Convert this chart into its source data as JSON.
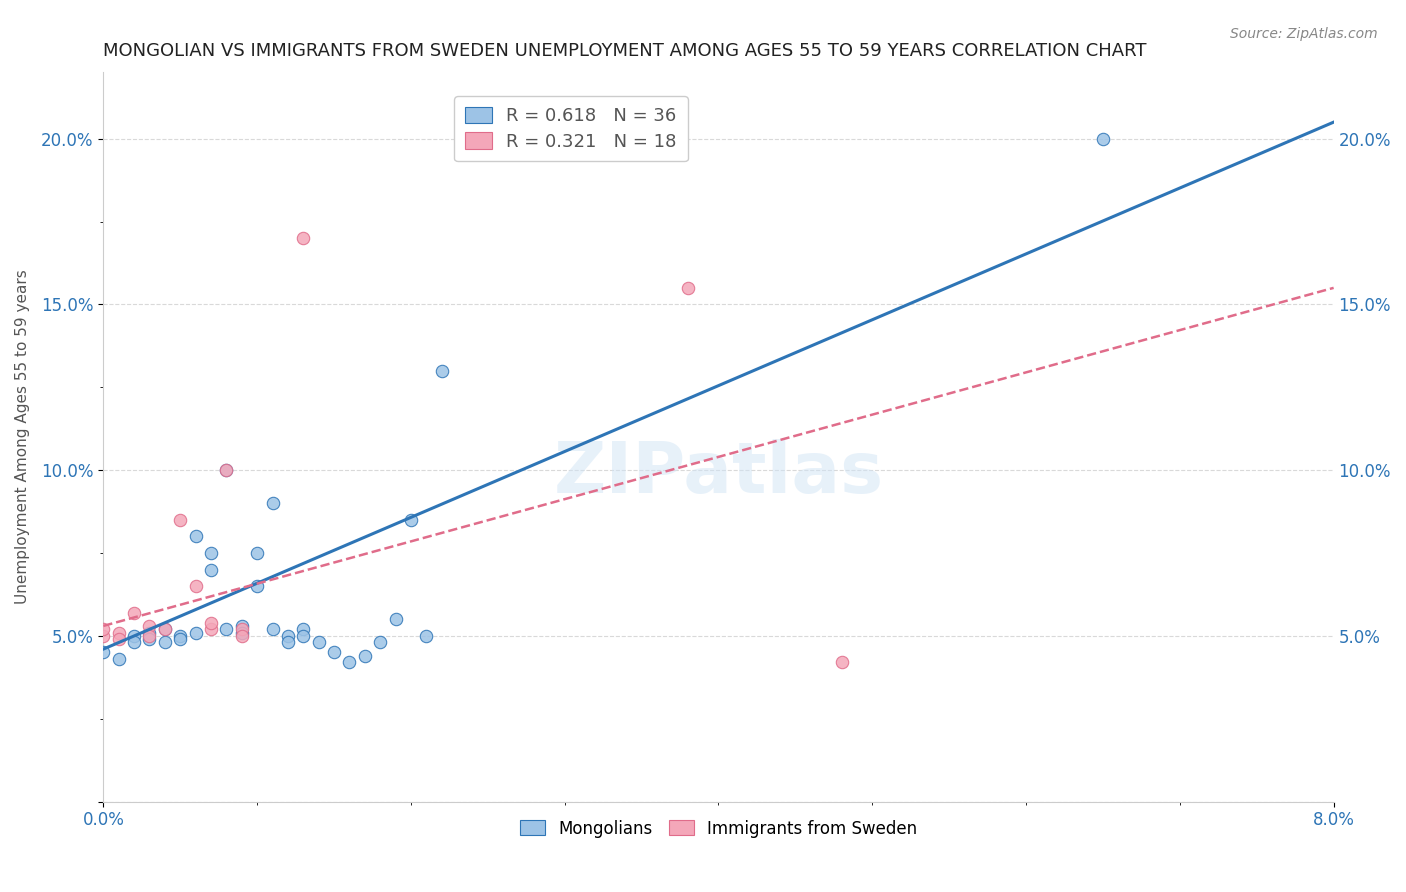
{
  "title": "MONGOLIAN VS IMMIGRANTS FROM SWEDEN UNEMPLOYMENT AMONG AGES 55 TO 59 YEARS CORRELATION CHART",
  "source": "Source: ZipAtlas.com",
  "xlabel": "",
  "ylabel": "Unemployment Among Ages 55 to 59 years",
  "xlim": [
    0.0,
    0.08
  ],
  "ylim": [
    0.0,
    0.22
  ],
  "yticks": [
    0.0,
    0.05,
    0.1,
    0.15,
    0.2
  ],
  "ytick_labels": [
    "",
    "5.0%",
    "10.0%",
    "15.0%",
    "20.0%"
  ],
  "xticks": [
    0.0,
    0.08
  ],
  "xtick_labels": [
    "0.0%",
    "8.0%"
  ],
  "mongolian_color": "#9dc3e6",
  "sweden_color": "#f4a7b9",
  "mongolian_line_color": "#2e75b6",
  "sweden_line_color": "#e06c8a",
  "mongolian_R": 0.618,
  "mongolian_N": 36,
  "sweden_R": 0.321,
  "sweden_N": 18,
  "mongolian_scatter": [
    [
      0.0,
      0.045
    ],
    [
      0.002,
      0.05
    ],
    [
      0.002,
      0.048
    ],
    [
      0.003,
      0.051
    ],
    [
      0.003,
      0.049
    ],
    [
      0.004,
      0.052
    ],
    [
      0.004,
      0.048
    ],
    [
      0.005,
      0.05
    ],
    [
      0.005,
      0.049
    ],
    [
      0.006,
      0.051
    ],
    [
      0.006,
      0.08
    ],
    [
      0.007,
      0.07
    ],
    [
      0.007,
      0.075
    ],
    [
      0.008,
      0.1
    ],
    [
      0.008,
      0.052
    ],
    [
      0.009,
      0.053
    ],
    [
      0.009,
      0.051
    ],
    [
      0.01,
      0.075
    ],
    [
      0.01,
      0.065
    ],
    [
      0.011,
      0.09
    ],
    [
      0.011,
      0.052
    ],
    [
      0.012,
      0.05
    ],
    [
      0.012,
      0.048
    ],
    [
      0.013,
      0.052
    ],
    [
      0.013,
      0.05
    ],
    [
      0.014,
      0.048
    ],
    [
      0.015,
      0.045
    ],
    [
      0.016,
      0.042
    ],
    [
      0.017,
      0.044
    ],
    [
      0.018,
      0.048
    ],
    [
      0.019,
      0.055
    ],
    [
      0.02,
      0.085
    ],
    [
      0.021,
      0.05
    ],
    [
      0.022,
      0.13
    ],
    [
      0.065,
      0.2
    ],
    [
      0.001,
      0.043
    ]
  ],
  "sweden_scatter": [
    [
      0.0,
      0.05
    ],
    [
      0.0,
      0.052
    ],
    [
      0.001,
      0.051
    ],
    [
      0.001,
      0.049
    ],
    [
      0.002,
      0.057
    ],
    [
      0.003,
      0.053
    ],
    [
      0.003,
      0.05
    ],
    [
      0.004,
      0.052
    ],
    [
      0.005,
      0.085
    ],
    [
      0.006,
      0.065
    ],
    [
      0.007,
      0.052
    ],
    [
      0.007,
      0.054
    ],
    [
      0.008,
      0.1
    ],
    [
      0.009,
      0.052
    ],
    [
      0.009,
      0.05
    ],
    [
      0.013,
      0.17
    ],
    [
      0.038,
      0.155
    ],
    [
      0.048,
      0.042
    ]
  ],
  "mongolian_line": [
    [
      0.0,
      0.046
    ],
    [
      0.08,
      0.205
    ]
  ],
  "sweden_line": [
    [
      0.0,
      0.053
    ],
    [
      0.08,
      0.155
    ]
  ],
  "watermark": "ZIPatlas",
  "background_color": "#ffffff",
  "grid_color": "#d9d9d9"
}
